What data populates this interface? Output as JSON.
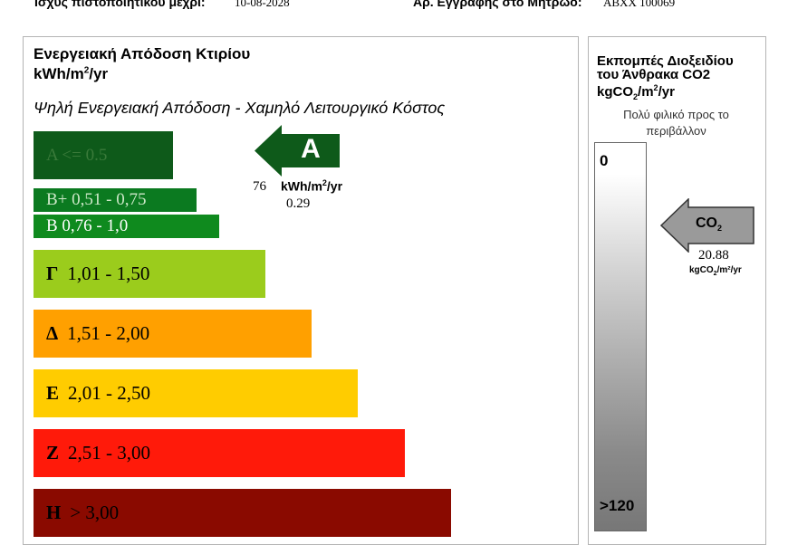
{
  "header": {
    "validity_label": "Ισχύς πιστοποιητικού μέχρι:",
    "validity_value": "10-08-2028",
    "registry_label": "Αρ. Εγγραφής στο Μητρώο:",
    "registry_value": "ABXX 100069"
  },
  "energy": {
    "title": "Ενεργειακή Απόδοση Κτιρίου",
    "unit_prefix": "kWh/m",
    "unit_sup": "2",
    "unit_suffix": "/yr",
    "subtitle": "Ψηλή Ενεργειακή Απόδοση - Χαμηλό Λειτουργικό Κόστος",
    "bands": [
      {
        "label": "A <=  0.5",
        "letter": "",
        "range": "A <=  0.5",
        "color": "#0e5a1a"
      },
      {
        "label": "B+ 0,51 - 0,75",
        "letter": "",
        "range": "B+ 0,51 - 0,75",
        "color": "#0b7a20"
      },
      {
        "label": "B  0,76 - 1,0",
        "letter": "",
        "range": "B  0,76 - 1,0",
        "color": "#0f8a1e"
      },
      {
        "letter": "Γ",
        "range": "1,01 - 1,50",
        "color": "#9bcc1c"
      },
      {
        "letter": "Δ",
        "range": "1,51 - 2,00",
        "color": "#ffa000"
      },
      {
        "letter": "Ε",
        "range": "2,01 - 2,50",
        "color": "#ffcc00"
      },
      {
        "letter": "Ζ",
        "range": "2,51 - 3,00",
        "color": "#ff1a0a"
      },
      {
        "letter": "Η",
        "range": "> 3,00",
        "color": "#8a0a00"
      }
    ],
    "rating": {
      "letter": "A",
      "value": "76",
      "unit_prefix": "kWh/m",
      "unit_sup": "2",
      "unit_suffix": "/yr",
      "ratio": "0.29",
      "color": "#0e5a1a"
    }
  },
  "co2": {
    "title_line1": "Εκπομπές Διοξειδίου",
    "title_line2": "του Άνθρακα  CO2",
    "unit_prefix": "kgCO",
    "unit_sub": "2",
    "unit_mid": "/m",
    "unit_sup": "2",
    "unit_suffix": "/yr",
    "friendly_text": "Πολύ φιλικό προς το περιβάλλον",
    "scale_top": "0",
    "scale_bottom": ">120",
    "arrow_label": "CO",
    "arrow_label_sub": "2",
    "value": "20.88",
    "value_unit_prefix": "kgCO",
    "value_unit_sub": "2",
    "value_unit_suffix": "/m²/yr",
    "value_fraction": 0.17
  }
}
